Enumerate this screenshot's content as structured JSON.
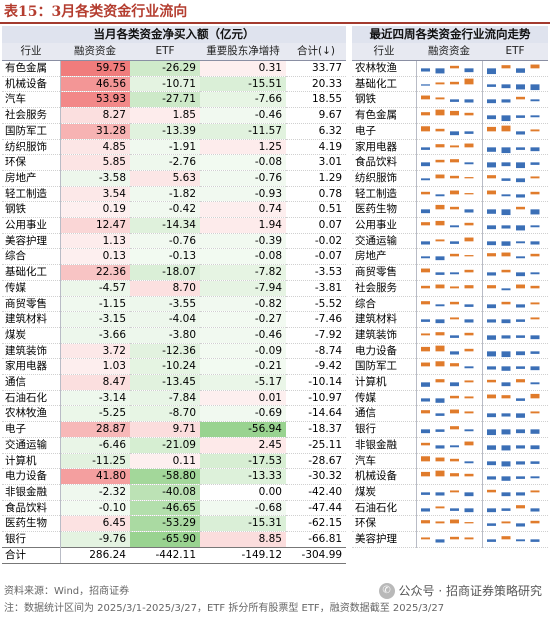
{
  "title": "表15：3月各类资金行业流向",
  "left_header": "当月各类资金净买入额（亿元）",
  "right_header": "最近四周各类资金行业流向走势",
  "left_columns": [
    "行业",
    "融资资金",
    "ETF",
    "重要股东净增持",
    "合计(↓)"
  ],
  "right_columns": [
    "行业",
    "融资资金",
    "ETF"
  ],
  "colors": {
    "pos_red": "#f6b6b6",
    "neg_green": "#bfe3bb",
    "bar_orange": "#e07b2b",
    "bar_blue": "#3b6fb6"
  },
  "left_rows": [
    {
      "ind": "有色金属",
      "rz": "59.75",
      "etf": "-26.29",
      "gd": "0.31",
      "hj": "33.77"
    },
    {
      "ind": "机械设备",
      "rz": "46.56",
      "etf": "-10.71",
      "gd": "-15.51",
      "hj": "20.33"
    },
    {
      "ind": "汽车",
      "rz": "53.93",
      "etf": "-27.71",
      "gd": "-7.66",
      "hj": "18.55"
    },
    {
      "ind": "社会服务",
      "rz": "8.27",
      "etf": "1.85",
      "gd": "-0.46",
      "hj": "9.67"
    },
    {
      "ind": "国防军工",
      "rz": "31.28",
      "etf": "-13.39",
      "gd": "-11.57",
      "hj": "6.32"
    },
    {
      "ind": "纺织服饰",
      "rz": "4.85",
      "etf": "-1.91",
      "gd": "1.25",
      "hj": "4.19"
    },
    {
      "ind": "环保",
      "rz": "5.85",
      "etf": "-2.76",
      "gd": "-0.08",
      "hj": "3.01"
    },
    {
      "ind": "房地产",
      "rz": "-3.58",
      "etf": "5.63",
      "gd": "-0.76",
      "hj": "1.29"
    },
    {
      "ind": "轻工制造",
      "rz": "3.54",
      "etf": "-1.82",
      "gd": "-0.93",
      "hj": "0.78"
    },
    {
      "ind": "钢铁",
      "rz": "0.19",
      "etf": "-0.42",
      "gd": "0.74",
      "hj": "0.51"
    },
    {
      "ind": "公用事业",
      "rz": "12.47",
      "etf": "-14.34",
      "gd": "1.94",
      "hj": "0.07"
    },
    {
      "ind": "美容护理",
      "rz": "1.13",
      "etf": "-0.76",
      "gd": "-0.39",
      "hj": "-0.02"
    },
    {
      "ind": "综合",
      "rz": "0.13",
      "etf": "-0.13",
      "gd": "-0.08",
      "hj": "-0.07"
    },
    {
      "ind": "基础化工",
      "rz": "22.36",
      "etf": "-18.07",
      "gd": "-7.82",
      "hj": "-3.53"
    },
    {
      "ind": "传媒",
      "rz": "-4.57",
      "etf": "8.70",
      "gd": "-7.94",
      "hj": "-3.81"
    },
    {
      "ind": "商贸零售",
      "rz": "-1.15",
      "etf": "-3.55",
      "gd": "-0.82",
      "hj": "-5.52"
    },
    {
      "ind": "建筑材料",
      "rz": "-3.15",
      "etf": "-4.04",
      "gd": "-0.27",
      "hj": "-7.46"
    },
    {
      "ind": "煤炭",
      "rz": "-3.66",
      "etf": "-3.80",
      "gd": "-0.46",
      "hj": "-7.92"
    },
    {
      "ind": "建筑装饰",
      "rz": "3.72",
      "etf": "-12.36",
      "gd": "-0.09",
      "hj": "-8.74"
    },
    {
      "ind": "家用电器",
      "rz": "1.03",
      "etf": "-10.24",
      "gd": "-0.21",
      "hj": "-9.42"
    },
    {
      "ind": "通信",
      "rz": "8.47",
      "etf": "-13.45",
      "gd": "-5.17",
      "hj": "-10.14"
    },
    {
      "ind": "石油石化",
      "rz": "-3.14",
      "etf": "-7.84",
      "gd": "0.01",
      "hj": "-10.97"
    },
    {
      "ind": "农林牧渔",
      "rz": "-5.25",
      "etf": "-8.70",
      "gd": "-0.69",
      "hj": "-14.64"
    },
    {
      "ind": "电子",
      "rz": "28.87",
      "etf": "9.71",
      "gd": "-56.94",
      "hj": "-18.37"
    },
    {
      "ind": "交通运输",
      "rz": "-6.46",
      "etf": "-21.09",
      "gd": "2.45",
      "hj": "-25.11"
    },
    {
      "ind": "计算机",
      "rz": "-11.25",
      "etf": "0.11",
      "gd": "-17.53",
      "hj": "-28.67"
    },
    {
      "ind": "电力设备",
      "rz": "41.80",
      "etf": "-58.80",
      "gd": "-13.33",
      "hj": "-30.32"
    },
    {
      "ind": "非银金融",
      "rz": "-2.32",
      "etf": "-40.08",
      "gd": "0.00",
      "hj": "-42.40"
    },
    {
      "ind": "食品饮料",
      "rz": "-0.10",
      "etf": "-46.65",
      "gd": "-0.68",
      "hj": "-47.44"
    },
    {
      "ind": "医药生物",
      "rz": "6.45",
      "etf": "-53.29",
      "gd": "-15.31",
      "hj": "-62.15"
    },
    {
      "ind": "银行",
      "rz": "-9.76",
      "etf": "-65.90",
      "gd": "8.85",
      "hj": "-66.81"
    }
  ],
  "left_total": {
    "ind": "合计",
    "rz": "286.24",
    "etf": "-442.11",
    "gd": "-149.12",
    "hj": "-304.99"
  },
  "right_rows": [
    {
      "ind": "农林牧渔",
      "rz": [
        -0.5,
        -0.8,
        0.4,
        -0.6
      ],
      "etf": [
        -0.9,
        0.5,
        -0.7,
        0.6
      ]
    },
    {
      "ind": "基础化工",
      "rz": [
        -0.2,
        0.3,
        0.4,
        0.9
      ],
      "etf": [
        -0.4,
        -0.6,
        -0.8,
        -0.9
      ]
    },
    {
      "ind": "钢铁",
      "rz": [
        0.6,
        0.3,
        -0.4,
        -0.5
      ],
      "etf": [
        -0.6,
        -0.5,
        0.4,
        -0.3
      ]
    },
    {
      "ind": "有色金属",
      "rz": [
        0.5,
        0.9,
        0.7,
        0.4
      ],
      "etf": [
        -0.6,
        -0.9,
        -0.4,
        -0.3
      ]
    },
    {
      "ind": "电子",
      "rz": [
        0.8,
        0.4,
        -0.6,
        -0.4
      ],
      "etf": [
        0.7,
        0.9,
        -0.5,
        0.3
      ]
    },
    {
      "ind": "家用电器",
      "rz": [
        -0.4,
        0.5,
        0.3,
        0.6
      ],
      "etf": [
        -0.7,
        -0.9,
        -0.4,
        -0.6
      ]
    },
    {
      "ind": "食品饮料",
      "rz": [
        -0.6,
        0.4,
        0.5,
        -0.3
      ],
      "etf": [
        -0.8,
        -0.6,
        -0.9,
        -0.4
      ]
    },
    {
      "ind": "纺织服饰",
      "rz": [
        -0.3,
        0.6,
        0.4,
        0.2
      ],
      "etf": [
        0.5,
        -0.4,
        -0.6,
        0.3
      ]
    },
    {
      "ind": "轻工制造",
      "rz": [
        0.4,
        -0.3,
        0.6,
        0.2
      ],
      "etf": [
        0.6,
        -0.3,
        -0.5,
        0.4
      ]
    },
    {
      "ind": "医药生物",
      "rz": [
        -0.6,
        0.7,
        0.4,
        -0.5
      ],
      "etf": [
        -0.7,
        -0.9,
        0.4,
        -0.8
      ]
    },
    {
      "ind": "公用事业",
      "rz": [
        0.5,
        0.7,
        -0.3,
        0.4
      ],
      "etf": [
        -0.6,
        -0.5,
        -0.8,
        -0.3
      ]
    },
    {
      "ind": "交通运输",
      "rz": [
        -0.5,
        0.3,
        -0.4,
        0.6
      ],
      "etf": [
        -0.6,
        -0.7,
        -0.3,
        -0.5
      ]
    },
    {
      "ind": "房地产",
      "rz": [
        -0.3,
        -0.6,
        0.4,
        0.2
      ],
      "etf": [
        0.5,
        0.6,
        -0.3,
        0.4
      ]
    },
    {
      "ind": "商贸零售",
      "rz": [
        0.6,
        -0.4,
        -0.3,
        0.4
      ],
      "etf": [
        -0.5,
        0.4,
        -0.6,
        -0.3
      ]
    },
    {
      "ind": "社会服务",
      "rz": [
        0.4,
        0.6,
        0.3,
        0.5
      ],
      "etf": [
        0.5,
        -0.3,
        0.6,
        0.4
      ]
    },
    {
      "ind": "综合",
      "rz": [
        0.5,
        -0.3,
        0.4,
        -0.4
      ],
      "etf": [
        -0.6,
        0.4,
        -0.5,
        0.3
      ]
    },
    {
      "ind": "建筑材料",
      "rz": [
        -0.4,
        -0.6,
        0.3,
        -0.5
      ],
      "etf": [
        -0.5,
        -0.6,
        -0.4,
        0.3
      ]
    },
    {
      "ind": "建筑装饰",
      "rz": [
        0.3,
        0.5,
        -0.4,
        0.4
      ],
      "etf": [
        -0.7,
        -0.5,
        -0.4,
        -0.6
      ]
    },
    {
      "ind": "电力设备",
      "rz": [
        0.7,
        0.9,
        -0.5,
        0.4
      ],
      "etf": [
        -0.8,
        -0.9,
        -0.6,
        -0.4
      ]
    },
    {
      "ind": "国防军工",
      "rz": [
        0.6,
        0.8,
        0.5,
        -0.3
      ],
      "etf": [
        -0.5,
        -0.7,
        -0.4,
        -0.6
      ]
    },
    {
      "ind": "计算机",
      "rz": [
        -0.7,
        0.5,
        -0.6,
        0.3
      ],
      "etf": [
        0.4,
        -0.6,
        0.5,
        -0.3
      ]
    },
    {
      "ind": "传媒",
      "rz": [
        -0.5,
        -0.7,
        0.4,
        0.3
      ],
      "etf": [
        0.6,
        0.5,
        -0.4,
        0.7
      ]
    },
    {
      "ind": "通信",
      "rz": [
        0.5,
        -0.4,
        0.6,
        0.3
      ],
      "etf": [
        -0.6,
        -0.5,
        -0.7,
        0.3
      ]
    },
    {
      "ind": "银行",
      "rz": [
        -0.6,
        -0.4,
        0.5,
        -0.3
      ],
      "etf": [
        -0.9,
        -0.8,
        -0.6,
        -0.7
      ]
    },
    {
      "ind": "非银金融",
      "rz": [
        0.4,
        -0.5,
        -0.3,
        0.6
      ],
      "etf": [
        -0.7,
        -0.8,
        -0.5,
        -0.6
      ]
    },
    {
      "ind": "汽车",
      "rz": [
        0.8,
        0.6,
        0.4,
        -0.3
      ],
      "etf": [
        -0.6,
        -0.8,
        -0.5,
        -0.4
      ]
    },
    {
      "ind": "机械设备",
      "rz": [
        0.7,
        0.9,
        0.5,
        0.4
      ],
      "etf": [
        -0.5,
        -0.7,
        -0.4,
        -0.3
      ]
    },
    {
      "ind": "煤炭",
      "rz": [
        -0.4,
        -0.5,
        0.3,
        -0.6
      ],
      "etf": [
        0.4,
        -0.6,
        -0.5,
        0.3
      ]
    },
    {
      "ind": "石油石化",
      "rz": [
        -0.5,
        0.3,
        -0.4,
        -0.6
      ],
      "etf": [
        -0.6,
        -0.4,
        0.5,
        -0.5
      ]
    },
    {
      "ind": "环保",
      "rz": [
        0.5,
        0.3,
        0.6,
        0.2
      ],
      "etf": [
        -0.4,
        0.3,
        -0.5,
        0.4
      ]
    },
    {
      "ind": "美容护理",
      "rz": [
        0.3,
        -0.5,
        0.4,
        0.3
      ],
      "etf": [
        -0.4,
        0.5,
        -0.3,
        -0.4
      ]
    }
  ],
  "source_note": "资料来源：Wind，招商证券",
  "note": "注：数据统计区间为 2025/3/1-2025/3/27，ETF 拆分所有股票型 ETF，融资数据截至 2025/3/27",
  "watermark": "公众号 · 招商证券策略研究"
}
